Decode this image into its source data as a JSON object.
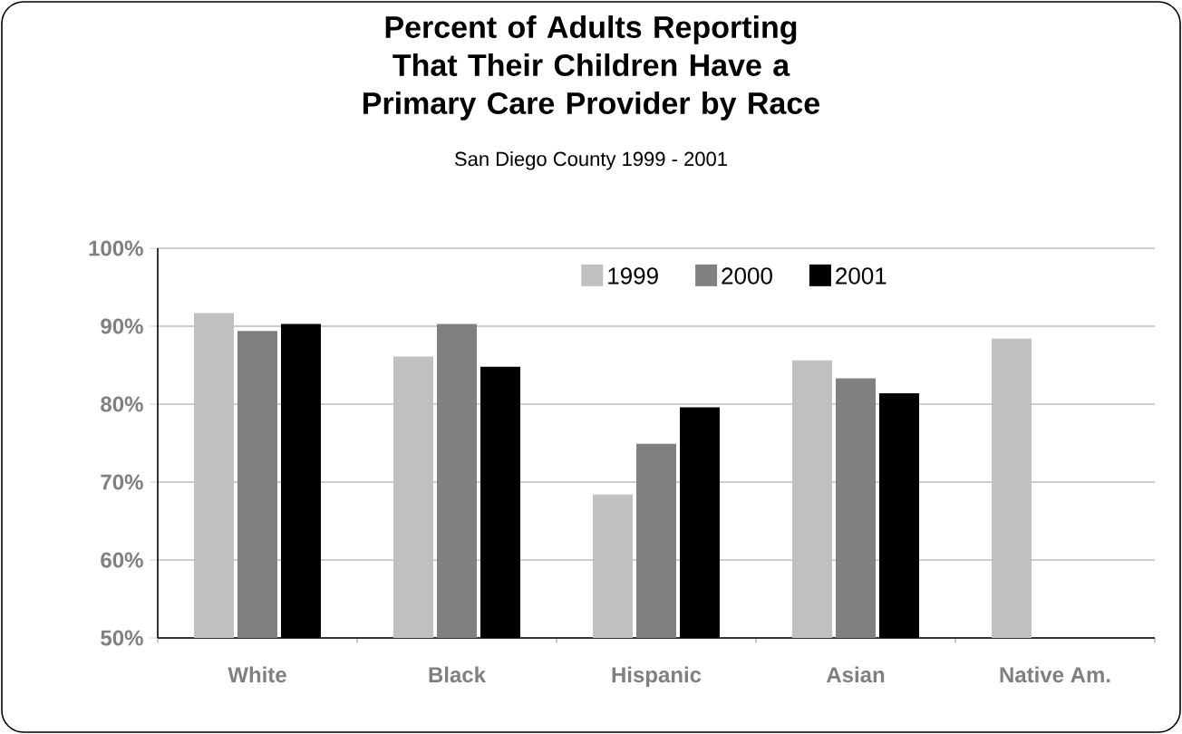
{
  "chart_data": {
    "type": "bar",
    "title": "Percent of Adults Reporting That Their Children Have a Primary Care Provider by Race",
    "subtitle": "San Diego County 1999 - 2001",
    "categories": [
      "White",
      "Black",
      "Hispanic",
      "Asian",
      "Native Am."
    ],
    "series": [
      {
        "name": "1999",
        "color": "#c0c0c0",
        "values": [
          91.7,
          86.1,
          68.4,
          85.6,
          88.4
        ]
      },
      {
        "name": "2000",
        "color": "#808080",
        "values": [
          89.4,
          90.3,
          74.9,
          83.3,
          null
        ]
      },
      {
        "name": "2001",
        "color": "#000000",
        "values": [
          90.3,
          84.8,
          79.6,
          81.4,
          null
        ]
      }
    ],
    "ylim": [
      50,
      100
    ],
    "yticks": [
      {
        "value": 50,
        "label": "50%"
      },
      {
        "value": 60,
        "label": "60%"
      },
      {
        "value": 70,
        "label": "70%"
      },
      {
        "value": 80,
        "label": "80%"
      },
      {
        "value": 90,
        "label": "90%"
      },
      {
        "value": 100,
        "label": "100%"
      }
    ],
    "grid": "y",
    "legend": "top"
  }
}
